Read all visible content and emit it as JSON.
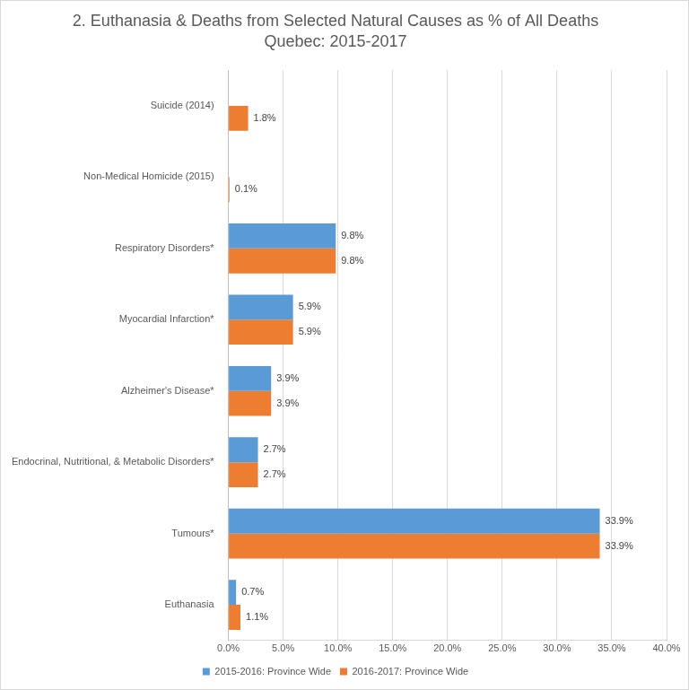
{
  "chart_data": {
    "type": "bar",
    "orientation": "horizontal",
    "title": "2. Euthanasia & Deaths from Selected Natural Causes as % of All Deaths",
    "subtitle": "Quebec: 2015-2017",
    "categories": [
      "Suicide (2014)",
      "Non-Medical Homicide (2015)",
      "Respiratory Disorders*",
      "Myocardial Infarction*",
      "Alzheimer's Disease*",
      "Endocrinal, Nutritional, & Metabolic Disorders*",
      "Tumours*",
      "Euthanasia"
    ],
    "series": [
      {
        "name": "2015-2016: Province Wide",
        "color": "#5b9bd5",
        "values": [
          null,
          null,
          9.8,
          5.9,
          3.9,
          2.7,
          33.9,
          0.7
        ],
        "value_labels": [
          null,
          null,
          "9.8%",
          "5.9%",
          "3.9%",
          "2.7%",
          "33.9%",
          "0.7%"
        ]
      },
      {
        "name": "2016-2017: Province Wide",
        "color": "#ed7d31",
        "values": [
          1.8,
          0.1,
          9.8,
          5.9,
          3.9,
          2.7,
          33.9,
          1.1
        ],
        "value_labels": [
          "1.8%",
          "0.1%",
          "9.8%",
          "5.9%",
          "3.9%",
          "2.7%",
          "33.9%",
          "1.1%"
        ]
      }
    ],
    "xlim": [
      0,
      40
    ],
    "xticks": [
      {
        "value": 0,
        "label": "0.0%"
      },
      {
        "value": 5,
        "label": "5.0%"
      },
      {
        "value": 10,
        "label": "10.0%"
      },
      {
        "value": 15,
        "label": "15.0%"
      },
      {
        "value": 20,
        "label": "20.0%"
      },
      {
        "value": 25,
        "label": "25.0%"
      },
      {
        "value": 30,
        "label": "30.0%"
      },
      {
        "value": 35,
        "label": "35.0%"
      },
      {
        "value": 40,
        "label": "40.0%"
      }
    ],
    "grid": true,
    "legend": "bottom",
    "data_labels": true
  }
}
